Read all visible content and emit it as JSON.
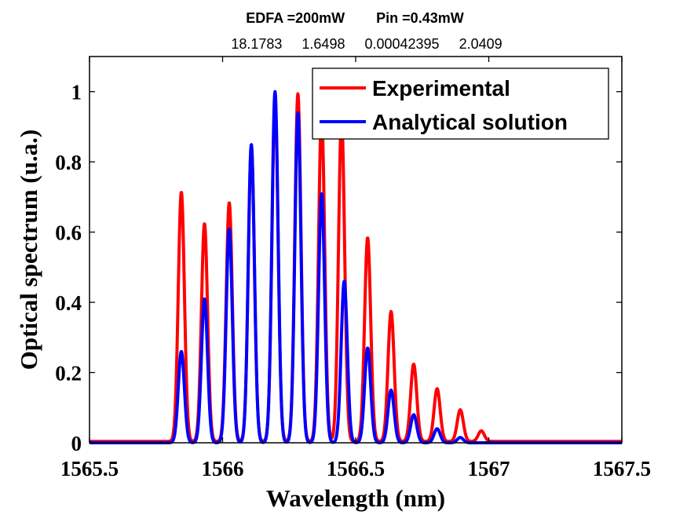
{
  "chart_data": {
    "type": "line",
    "title_line1": "EDFA =200mW        Pin =0.43mW",
    "title_line2": "18.1783     1.6498     0.00042395     2.0409",
    "xlabel": "Wavelength (nm)",
    "ylabel": "Optical spectrum (u.a.)",
    "xlim": [
      1565.5,
      1567.5
    ],
    "ylim": [
      0,
      1.1
    ],
    "xticks": [
      1565.5,
      1566,
      1566.5,
      1567,
      1567.5
    ],
    "xtick_labels": [
      "1565.5",
      "1566",
      "1566.5",
      "1567",
      "1567.5"
    ],
    "yticks": [
      0,
      0.2,
      0.4,
      0.6,
      0.8,
      1
    ],
    "ytick_labels": [
      "0",
      "0.2",
      "0.4",
      "0.6",
      "0.8",
      "1"
    ],
    "grid": false,
    "legend_position": "top-right",
    "series": [
      {
        "name": "Experimental",
        "color": "#ff0000",
        "peaks": [
          {
            "x": 1565.845,
            "y": 0.71
          },
          {
            "x": 1565.932,
            "y": 0.62
          },
          {
            "x": 1566.025,
            "y": 0.68
          },
          {
            "x": 1566.108,
            "y": 0.84
          },
          {
            "x": 1566.197,
            "y": 0.97
          },
          {
            "x": 1566.283,
            "y": 0.99
          },
          {
            "x": 1566.372,
            "y": 0.93
          },
          {
            "x": 1566.447,
            "y": 0.92
          },
          {
            "x": 1566.545,
            "y": 0.58
          },
          {
            "x": 1566.633,
            "y": 0.37
          },
          {
            "x": 1566.718,
            "y": 0.22
          },
          {
            "x": 1566.806,
            "y": 0.15
          },
          {
            "x": 1566.893,
            "y": 0.09
          },
          {
            "x": 1566.972,
            "y": 0.03
          }
        ]
      },
      {
        "name": "Analytical solution",
        "color": "#0000ff",
        "peaks": [
          {
            "x": 1565.845,
            "y": 0.26
          },
          {
            "x": 1565.932,
            "y": 0.41
          },
          {
            "x": 1566.025,
            "y": 0.61
          },
          {
            "x": 1566.108,
            "y": 0.85
          },
          {
            "x": 1566.197,
            "y": 1.0
          },
          {
            "x": 1566.283,
            "y": 0.94
          },
          {
            "x": 1566.372,
            "y": 0.71
          },
          {
            "x": 1566.457,
            "y": 0.46
          },
          {
            "x": 1566.545,
            "y": 0.27
          },
          {
            "x": 1566.633,
            "y": 0.15
          },
          {
            "x": 1566.718,
            "y": 0.08
          },
          {
            "x": 1566.806,
            "y": 0.04
          },
          {
            "x": 1566.893,
            "y": 0.015
          }
        ]
      }
    ]
  }
}
